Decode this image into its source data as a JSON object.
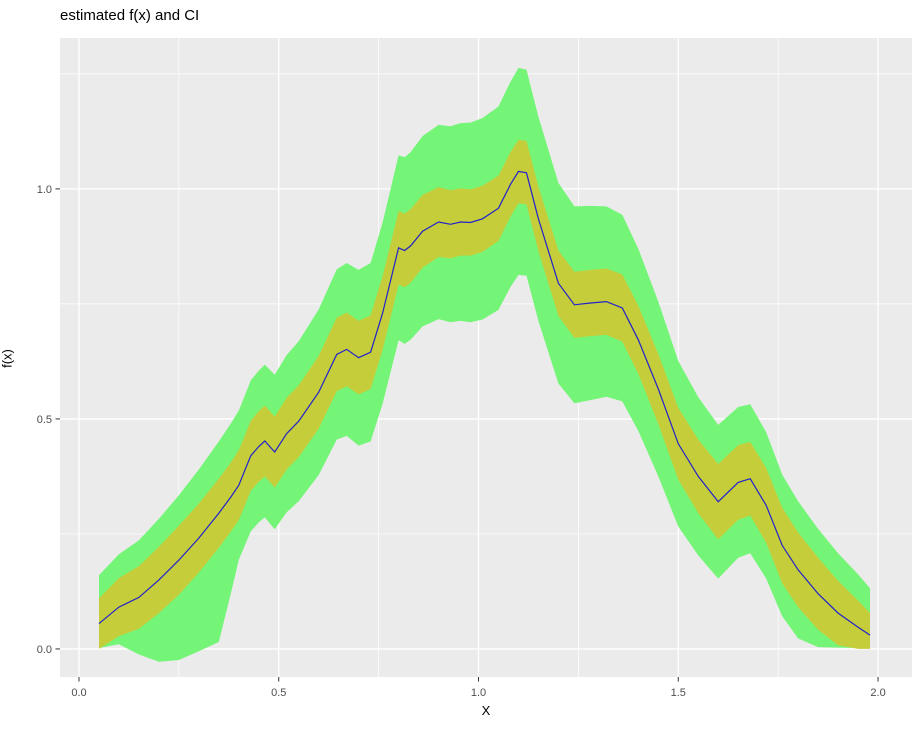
{
  "chart_data": {
    "type": "area",
    "title": "estimated f(x) and CI",
    "xlabel": "X",
    "ylabel": "f(x)",
    "grid": true,
    "legend": false,
    "xlim": [
      -0.0475,
      2.085
    ],
    "ylim": [
      -0.061,
      1.328
    ],
    "x_major_ticks": [
      0.0,
      0.5,
      1.0,
      1.5,
      2.0
    ],
    "x_tick_labels": [
      "0.0",
      "0.5",
      "1.0",
      "1.5",
      "2.0"
    ],
    "x_minor_ticks": [
      0.25,
      0.75,
      1.25,
      1.75
    ],
    "y_major_ticks": [
      0.0,
      0.5,
      1.0
    ],
    "y_tick_labels": [
      "0.0",
      "0.5",
      "1.0"
    ],
    "y_minor_ticks": [
      0.25,
      0.75,
      1.25
    ],
    "x": [
      0.05,
      0.1,
      0.15,
      0.2,
      0.25,
      0.3,
      0.35,
      0.38,
      0.4,
      0.43,
      0.45,
      0.465,
      0.49,
      0.52,
      0.55,
      0.6,
      0.645,
      0.67,
      0.7,
      0.73,
      0.76,
      0.8,
      0.815,
      0.83,
      0.86,
      0.9,
      0.93,
      0.955,
      0.98,
      1.01,
      1.05,
      1.08,
      1.1,
      1.12,
      1.15,
      1.2,
      1.24,
      1.28,
      1.32,
      1.36,
      1.4,
      1.45,
      1.5,
      1.55,
      1.6,
      1.65,
      1.68,
      1.72,
      1.76,
      1.8,
      1.85,
      1.9,
      1.95,
      1.98
    ],
    "series": [
      {
        "name": "outer confidence band",
        "role": "band",
        "color": "#75F577",
        "upper": [
          0.16,
          0.206,
          0.236,
          0.283,
          0.334,
          0.39,
          0.451,
          0.49,
          0.518,
          0.584,
          0.605,
          0.618,
          0.596,
          0.639,
          0.669,
          0.738,
          0.825,
          0.839,
          0.824,
          0.839,
          0.927,
          1.073,
          1.069,
          1.08,
          1.115,
          1.139,
          1.136,
          1.143,
          1.144,
          1.154,
          1.179,
          1.233,
          1.263,
          1.259,
          1.157,
          1.013,
          0.962,
          0.963,
          0.962,
          0.944,
          0.87,
          0.755,
          0.626,
          0.547,
          0.487,
          0.526,
          0.532,
          0.471,
          0.379,
          0.321,
          0.261,
          0.208,
          0.162,
          0.132
        ],
        "lower": [
          0.002,
          0.01,
          -0.012,
          -0.028,
          -0.024,
          -0.005,
          0.015,
          0.12,
          0.194,
          0.256,
          0.275,
          0.286,
          0.26,
          0.297,
          0.321,
          0.378,
          0.455,
          0.463,
          0.442,
          0.451,
          0.533,
          0.671,
          0.663,
          0.672,
          0.701,
          0.717,
          0.71,
          0.713,
          0.71,
          0.716,
          0.737,
          0.787,
          0.813,
          0.811,
          0.713,
          0.577,
          0.534,
          0.541,
          0.548,
          0.538,
          0.474,
          0.375,
          0.266,
          0.203,
          0.153,
          0.198,
          0.208,
          0.153,
          0.071,
          0.023,
          0.004,
          0.003,
          0.002,
          0.001
        ]
      },
      {
        "name": "inner confidence band",
        "role": "band",
        "color": "#C5CD3A",
        "upper": [
          0.11,
          0.154,
          0.18,
          0.222,
          0.268,
          0.316,
          0.37,
          0.405,
          0.432,
          0.496,
          0.517,
          0.529,
          0.505,
          0.546,
          0.573,
          0.637,
          0.72,
          0.731,
          0.713,
          0.725,
          0.81,
          0.952,
          0.946,
          0.956,
          0.987,
          1.004,
          0.997,
          1.001,
          0.999,
          1.007,
          1.029,
          1.08,
          1.107,
          1.104,
          1.005,
          0.866,
          0.82,
          0.824,
          0.827,
          0.814,
          0.746,
          0.641,
          0.524,
          0.455,
          0.402,
          0.443,
          0.45,
          0.393,
          0.307,
          0.253,
          0.198,
          0.148,
          0.105,
          0.078
        ],
        "lower": [
          0.0,
          0.028,
          0.044,
          0.078,
          0.118,
          0.166,
          0.22,
          0.255,
          0.28,
          0.344,
          0.363,
          0.375,
          0.351,
          0.39,
          0.417,
          0.479,
          0.56,
          0.571,
          0.553,
          0.565,
          0.65,
          0.792,
          0.786,
          0.796,
          0.829,
          0.852,
          0.849,
          0.855,
          0.855,
          0.863,
          0.887,
          0.94,
          0.969,
          0.966,
          0.865,
          0.724,
          0.676,
          0.68,
          0.683,
          0.668,
          0.598,
          0.489,
          0.368,
          0.295,
          0.238,
          0.281,
          0.29,
          0.231,
          0.143,
          0.091,
          0.042,
          0.008,
          0.0,
          0.0
        ]
      },
      {
        "name": "estimated f(x)",
        "role": "line",
        "color": "#2222CC",
        "values": [
          0.055,
          0.091,
          0.112,
          0.15,
          0.193,
          0.241,
          0.295,
          0.33,
          0.356,
          0.42,
          0.44,
          0.452,
          0.428,
          0.468,
          0.495,
          0.558,
          0.64,
          0.651,
          0.633,
          0.645,
          0.73,
          0.872,
          0.866,
          0.876,
          0.908,
          0.928,
          0.923,
          0.928,
          0.927,
          0.935,
          0.958,
          1.01,
          1.038,
          1.035,
          0.935,
          0.795,
          0.748,
          0.752,
          0.755,
          0.741,
          0.672,
          0.565,
          0.446,
          0.375,
          0.32,
          0.362,
          0.37,
          0.312,
          0.225,
          0.172,
          0.12,
          0.078,
          0.047,
          0.03
        ]
      }
    ],
    "colors": {
      "panel_bg": "#EBEBEB",
      "grid": "#FFFFFF",
      "tick_label": "#4D4D4D",
      "tick_mark": "#333333",
      "title_text": "#000000"
    }
  }
}
